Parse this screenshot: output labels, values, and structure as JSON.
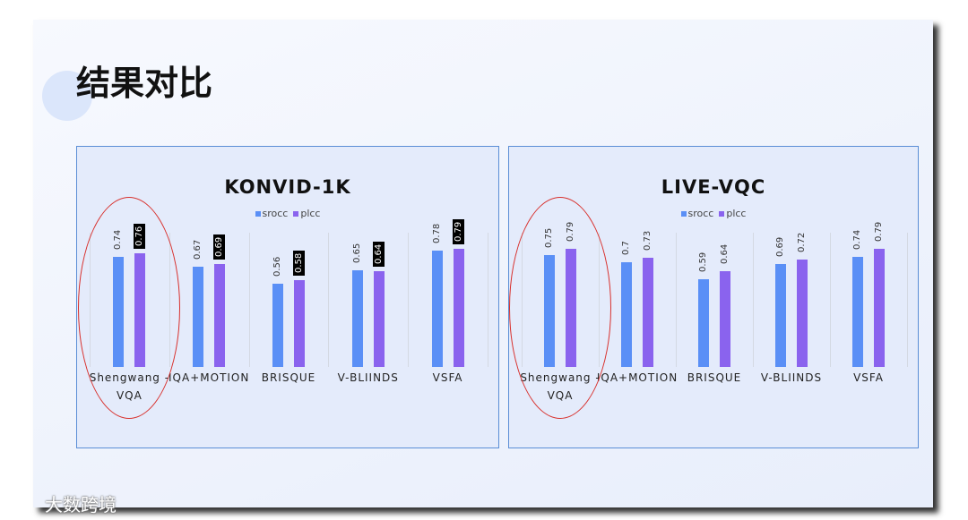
{
  "title": "结果对比",
  "watermark": "大数跨境",
  "chart_data": [
    {
      "type": "bar",
      "title": "KONVID-1K",
      "categories": [
        "Shengwang - VQA",
        "IQA+MOTION",
        "BRISQUE",
        "V-BLIINDS",
        "VSFA"
      ],
      "series": [
        {
          "name": "srocc",
          "color": "#5a8ff6",
          "values": [
            0.74,
            0.67,
            0.56,
            0.65,
            0.78
          ]
        },
        {
          "name": "plcc",
          "color": "#8a63ee",
          "values": [
            0.76,
            0.69,
            0.58,
            0.64,
            0.79
          ],
          "label_style": "boxed"
        }
      ],
      "ylim": [
        0,
        0.9
      ]
    },
    {
      "type": "bar",
      "title": "LIVE-VQC",
      "categories": [
        "Shengwang - VQA",
        "IQA+MOTION",
        "BRISQUE",
        "V-BLIINDS",
        "VSFA"
      ],
      "series": [
        {
          "name": "srocc",
          "color": "#5a8ff6",
          "values": [
            0.75,
            0.7,
            0.59,
            0.69,
            0.74
          ]
        },
        {
          "name": "plcc",
          "color": "#8a63ee",
          "values": [
            0.79,
            0.73,
            0.64,
            0.72,
            0.79
          ]
        }
      ],
      "ylim": [
        0,
        0.9
      ]
    }
  ]
}
